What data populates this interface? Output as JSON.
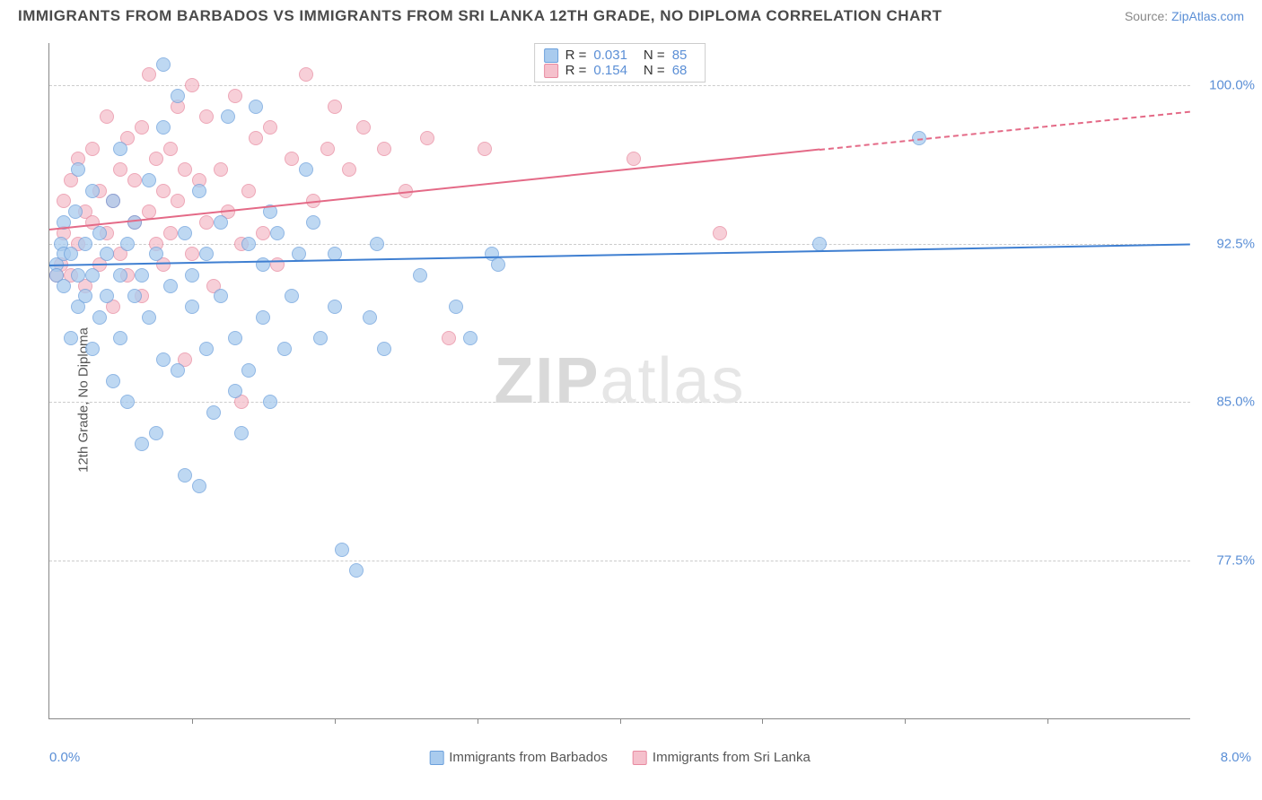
{
  "title": "IMMIGRANTS FROM BARBADOS VS IMMIGRANTS FROM SRI LANKA 12TH GRADE, NO DIPLOMA CORRELATION CHART",
  "source_prefix": "Source: ",
  "source_link": "ZipAtlas.com",
  "ylabel": "12th Grade, No Diploma",
  "watermark_zip": "ZIP",
  "watermark_rest": "atlas",
  "chart": {
    "type": "scatter",
    "xlim": [
      0,
      8
    ],
    "ylim": [
      70,
      102
    ],
    "x_ticks": [
      1,
      2,
      3,
      4,
      5,
      6,
      7
    ],
    "x_start_label": "0.0%",
    "x_end_label": "8.0%",
    "y_ticks": [
      {
        "v": 100.0,
        "label": "100.0%"
      },
      {
        "v": 92.5,
        "label": "92.5%"
      },
      {
        "v": 85.0,
        "label": "85.0%"
      },
      {
        "v": 77.5,
        "label": "77.5%"
      }
    ],
    "series": [
      {
        "name": "Immigrants from Barbados",
        "fill": "#a9cbee",
        "stroke": "#6ca0dc",
        "line_color": "#3f7fd1",
        "r_label": "R = ",
        "r_value": "0.031",
        "n_label": "N = ",
        "n_value": "85",
        "trend": {
          "x1": 0,
          "y1": 91.5,
          "x2_solid": 8,
          "y2_solid": 92.5,
          "x2_dash": 8,
          "y2_dash": 92.5
        },
        "points": [
          [
            0.05,
            91.5
          ],
          [
            0.05,
            91.0
          ],
          [
            0.08,
            92.5
          ],
          [
            0.1,
            92.0
          ],
          [
            0.1,
            90.5
          ],
          [
            0.1,
            93.5
          ],
          [
            0.15,
            88.0
          ],
          [
            0.15,
            92.0
          ],
          [
            0.18,
            94.0
          ],
          [
            0.2,
            91.0
          ],
          [
            0.2,
            89.5
          ],
          [
            0.2,
            96.0
          ],
          [
            0.25,
            90.0
          ],
          [
            0.25,
            92.5
          ],
          [
            0.3,
            91.0
          ],
          [
            0.3,
            87.5
          ],
          [
            0.3,
            95.0
          ],
          [
            0.35,
            89.0
          ],
          [
            0.35,
            93.0
          ],
          [
            0.4,
            92.0
          ],
          [
            0.4,
            90.0
          ],
          [
            0.45,
            86.0
          ],
          [
            0.45,
            94.5
          ],
          [
            0.5,
            91.0
          ],
          [
            0.5,
            88.0
          ],
          [
            0.5,
            97.0
          ],
          [
            0.55,
            92.5
          ],
          [
            0.55,
            85.0
          ],
          [
            0.6,
            90.0
          ],
          [
            0.6,
            93.5
          ],
          [
            0.65,
            83.0
          ],
          [
            0.65,
            91.0
          ],
          [
            0.7,
            89.0
          ],
          [
            0.7,
            95.5
          ],
          [
            0.75,
            83.5
          ],
          [
            0.75,
            92.0
          ],
          [
            0.8,
            98.0
          ],
          [
            0.8,
            87.0
          ],
          [
            0.8,
            101.0
          ],
          [
            0.85,
            90.5
          ],
          [
            0.9,
            99.5
          ],
          [
            0.9,
            86.5
          ],
          [
            0.95,
            93.0
          ],
          [
            0.95,
            81.5
          ],
          [
            1.0,
            91.0
          ],
          [
            1.0,
            89.5
          ],
          [
            1.05,
            95.0
          ],
          [
            1.05,
            81.0
          ],
          [
            1.1,
            87.5
          ],
          [
            1.1,
            92.0
          ],
          [
            1.15,
            84.5
          ],
          [
            1.2,
            90.0
          ],
          [
            1.2,
            93.5
          ],
          [
            1.25,
            98.5
          ],
          [
            1.3,
            85.5
          ],
          [
            1.3,
            88.0
          ],
          [
            1.35,
            83.5
          ],
          [
            1.4,
            92.5
          ],
          [
            1.4,
            86.5
          ],
          [
            1.45,
            99.0
          ],
          [
            1.5,
            91.5
          ],
          [
            1.5,
            89.0
          ],
          [
            1.55,
            94.0
          ],
          [
            1.55,
            85.0
          ],
          [
            1.6,
            93.0
          ],
          [
            1.65,
            87.5
          ],
          [
            1.7,
            90.0
          ],
          [
            1.75,
            92.0
          ],
          [
            1.8,
            96.0
          ],
          [
            1.85,
            93.5
          ],
          [
            1.9,
            88.0
          ],
          [
            2.0,
            89.5
          ],
          [
            2.0,
            92.0
          ],
          [
            2.05,
            78.0
          ],
          [
            2.15,
            77.0
          ],
          [
            2.25,
            89.0
          ],
          [
            2.3,
            92.5
          ],
          [
            2.35,
            87.5
          ],
          [
            2.6,
            91.0
          ],
          [
            2.85,
            89.5
          ],
          [
            2.95,
            88.0
          ],
          [
            3.1,
            92.0
          ],
          [
            3.15,
            91.5
          ],
          [
            5.4,
            92.5
          ],
          [
            6.1,
            97.5
          ]
        ]
      },
      {
        "name": "Immigrants from Sri Lanka",
        "fill": "#f5c0cc",
        "stroke": "#e88aa0",
        "line_color": "#e46a87",
        "r_label": "R = ",
        "r_value": "0.154",
        "n_label": "N = ",
        "n_value": "68",
        "trend": {
          "x1": 0,
          "y1": 93.2,
          "x2_solid": 5.4,
          "y2_solid": 97.0,
          "x2_dash": 8,
          "y2_dash": 98.8
        },
        "points": [
          [
            0.05,
            91.0
          ],
          [
            0.08,
            91.5
          ],
          [
            0.1,
            93.0
          ],
          [
            0.1,
            94.5
          ],
          [
            0.15,
            91.0
          ],
          [
            0.15,
            95.5
          ],
          [
            0.2,
            92.5
          ],
          [
            0.2,
            96.5
          ],
          [
            0.25,
            90.5
          ],
          [
            0.25,
            94.0
          ],
          [
            0.3,
            93.5
          ],
          [
            0.3,
            97.0
          ],
          [
            0.35,
            91.5
          ],
          [
            0.35,
            95.0
          ],
          [
            0.4,
            93.0
          ],
          [
            0.4,
            98.5
          ],
          [
            0.45,
            94.5
          ],
          [
            0.45,
            89.5
          ],
          [
            0.5,
            96.0
          ],
          [
            0.5,
            92.0
          ],
          [
            0.55,
            97.5
          ],
          [
            0.55,
            91.0
          ],
          [
            0.6,
            95.5
          ],
          [
            0.6,
            93.5
          ],
          [
            0.65,
            98.0
          ],
          [
            0.65,
            90.0
          ],
          [
            0.7,
            94.0
          ],
          [
            0.7,
            100.5
          ],
          [
            0.75,
            92.5
          ],
          [
            0.75,
            96.5
          ],
          [
            0.8,
            95.0
          ],
          [
            0.8,
            91.5
          ],
          [
            0.85,
            97.0
          ],
          [
            0.85,
            93.0
          ],
          [
            0.9,
            99.0
          ],
          [
            0.9,
            94.5
          ],
          [
            0.95,
            87.0
          ],
          [
            0.95,
            96.0
          ],
          [
            1.0,
            92.0
          ],
          [
            1.0,
            100.0
          ],
          [
            1.05,
            95.5
          ],
          [
            1.1,
            93.5
          ],
          [
            1.1,
            98.5
          ],
          [
            1.15,
            90.5
          ],
          [
            1.2,
            96.0
          ],
          [
            1.25,
            94.0
          ],
          [
            1.3,
            99.5
          ],
          [
            1.35,
            92.5
          ],
          [
            1.35,
            85.0
          ],
          [
            1.4,
            95.0
          ],
          [
            1.45,
            97.5
          ],
          [
            1.5,
            93.0
          ],
          [
            1.55,
            98.0
          ],
          [
            1.6,
            91.5
          ],
          [
            1.7,
            96.5
          ],
          [
            1.8,
            100.5
          ],
          [
            1.85,
            94.5
          ],
          [
            1.95,
            97.0
          ],
          [
            2.0,
            99.0
          ],
          [
            2.1,
            96.0
          ],
          [
            2.2,
            98.0
          ],
          [
            2.35,
            97.0
          ],
          [
            2.5,
            95.0
          ],
          [
            2.65,
            97.5
          ],
          [
            2.8,
            88.0
          ],
          [
            3.05,
            97.0
          ],
          [
            4.1,
            96.5
          ],
          [
            4.7,
            93.0
          ]
        ]
      }
    ]
  }
}
